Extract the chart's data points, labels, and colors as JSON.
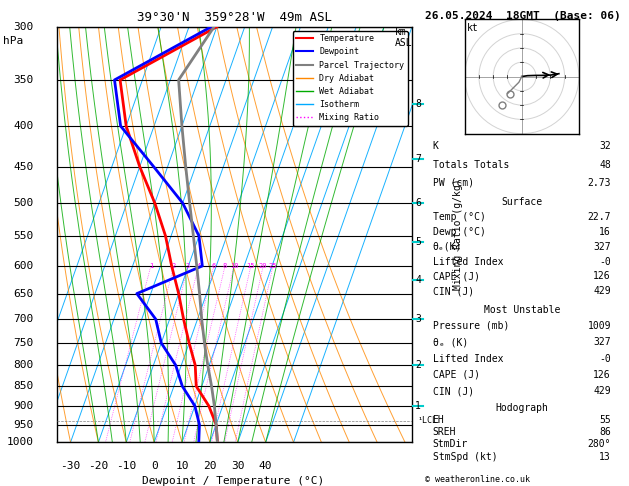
{
  "title_left": "39°30'N  359°28'W  49m ASL",
  "date_str": "26.05.2024  18GMT  (Base: 06)",
  "xlabel": "Dewpoint / Temperature (°C)",
  "pressure_levels": [
    300,
    350,
    400,
    450,
    500,
    550,
    600,
    650,
    700,
    750,
    800,
    850,
    900,
    950,
    1000
  ],
  "temp_min": -35,
  "temp_max": 40,
  "skew_factor": 0.7,
  "mixing_ratio_values": [
    1,
    2,
    3,
    4,
    6,
    8,
    10,
    15,
    20,
    25
  ],
  "km_ticks": [
    1,
    2,
    3,
    4,
    5,
    6,
    7,
    8
  ],
  "km_pressures": [
    900,
    800,
    700,
    625,
    560,
    500,
    440,
    375
  ],
  "lcl_pressure": 940,
  "temp_profile_T": [
    22.7,
    20.0,
    15.0,
    8.0,
    5.0,
    0.0,
    -5.0,
    -10.0,
    -16.0,
    -22.0,
    -30.0,
    -40.0,
    -50.0,
    -58.0,
    -30.0
  ],
  "temp_profile_P": [
    1000,
    950,
    900,
    850,
    800,
    750,
    700,
    650,
    600,
    550,
    500,
    450,
    400,
    350,
    300
  ],
  "dewp_profile_T": [
    16.0,
    14.0,
    10.0,
    3.0,
    -2.0,
    -10.0,
    -15.0,
    -25.0,
    -5.0,
    -10.0,
    -20.0,
    -35.0,
    -52.0,
    -60.0,
    -32.0
  ],
  "dewp_profile_P": [
    1000,
    950,
    900,
    850,
    800,
    750,
    700,
    650,
    600,
    550,
    500,
    450,
    400,
    350,
    300
  ],
  "parcel_T": [
    22.7,
    20.0,
    17.0,
    13.5,
    9.5,
    5.5,
    1.5,
    -2.5,
    -7.0,
    -12.0,
    -17.5,
    -23.5,
    -30.0,
    -37.0,
    -31.0
  ],
  "parcel_P": [
    1000,
    950,
    900,
    850,
    800,
    750,
    700,
    650,
    600,
    550,
    500,
    450,
    400,
    350,
    300
  ],
  "temp_color": "#ff0000",
  "dewp_color": "#0000ff",
  "parcel_color": "#808080",
  "isotherm_color": "#00aaff",
  "dry_adiabat_color": "#ff8800",
  "wet_adiabat_color": "#00aa00",
  "mixing_ratio_color": "#ff00ff",
  "stats": {
    "K": 32,
    "Totals Totals": 48,
    "PW (cm)": 2.73,
    "surf_temp": 22.7,
    "surf_dewp": 16,
    "surf_theta_e": 327,
    "surf_li": "-0",
    "surf_cape": 126,
    "surf_cin": 429,
    "mu_pressure": 1009,
    "mu_theta_e": 327,
    "mu_li": "-0",
    "mu_cape": 126,
    "mu_cin": 429,
    "hodo_eh": 55,
    "hodo_sreh": 86,
    "hodo_stmdir": "280°",
    "hodo_stmspd": 13
  },
  "figsize": [
    6.29,
    4.86
  ],
  "dpi": 100
}
